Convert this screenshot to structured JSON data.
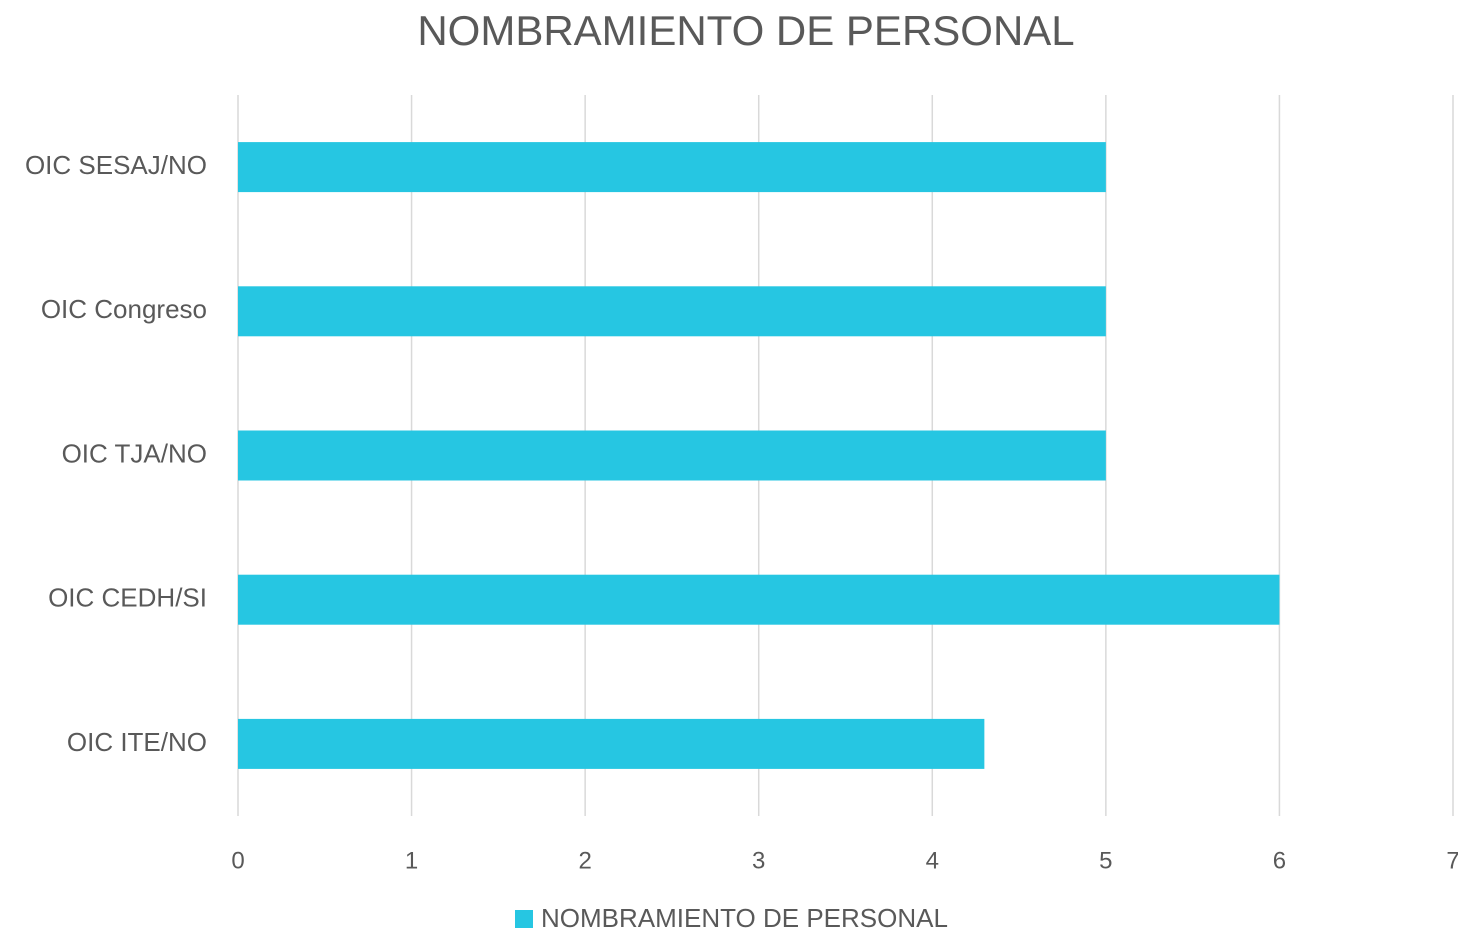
{
  "chart_data": {
    "type": "bar",
    "orientation": "horizontal",
    "title": "NOMBRAMIENTO DE PERSONAL",
    "categories": [
      "OIC SESAJ/NO",
      "OIC Congreso",
      "OIC TJA/NO",
      "OIC CEDH/SI",
      "OIC ITE/NO"
    ],
    "series": [
      {
        "name": "NOMBRAMIENTO DE PERSONAL",
        "color": "#26c6e2",
        "values": [
          5,
          5,
          5,
          6,
          4.3
        ]
      }
    ],
    "xlim": [
      0,
      7
    ],
    "xticks": [
      0,
      1,
      2,
      3,
      4,
      5,
      6,
      7
    ],
    "grid": true,
    "legend": "bottom"
  }
}
